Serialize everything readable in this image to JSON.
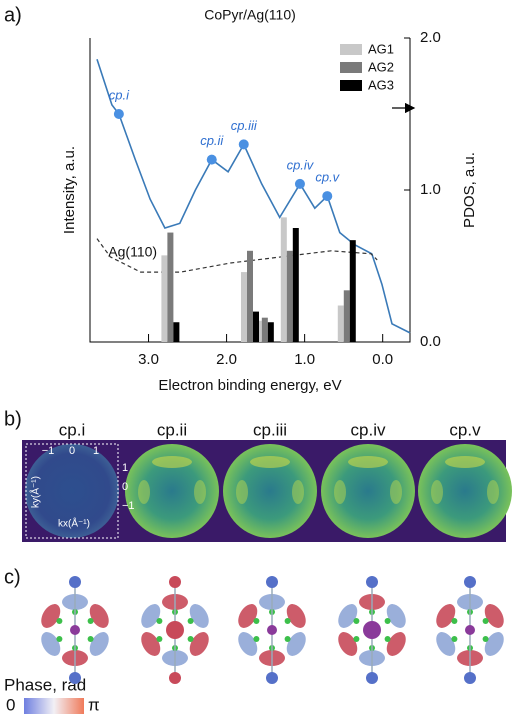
{
  "panels": {
    "a": "a)",
    "b": "b)",
    "c": "c)"
  },
  "chart_data": {
    "type": "combo",
    "title": "CoPyr/Ag(110)",
    "x_label": "Electron binding energy, eV",
    "y_label": "Intensity, a.u.",
    "y2_label": "PDOS, a.u.",
    "xlim": [
      3.75,
      -0.35
    ],
    "xticks": [
      {
        "value": 3,
        "label": "3.0"
      },
      {
        "value": 2,
        "label": "2.0"
      },
      {
        "value": 1,
        "label": "1.0"
      },
      {
        "value": 0,
        "label": "0.0"
      }
    ],
    "ylim": [
      0,
      1
    ],
    "y2lim": [
      0,
      2
    ],
    "y2ticks": [
      {
        "value": 0,
        "label": "0.0"
      },
      {
        "value": 1,
        "label": "1.0"
      },
      {
        "value": 2,
        "label": "2.0"
      }
    ],
    "series": [
      {
        "type": "line",
        "color": "#3a7ab8",
        "x": [
          3.66,
          3.47,
          3.38,
          3.17,
          2.98,
          2.79,
          2.6,
          2.4,
          2.19,
          1.98,
          1.78,
          1.55,
          1.32,
          1.06,
          0.87,
          0.71,
          0.55,
          0.36,
          0.14,
          0.01,
          -0.12,
          -0.35
        ],
        "values": [
          0.93,
          0.78,
          0.75,
          0.6,
          0.47,
          0.375,
          0.39,
          0.5,
          0.6,
          0.56,
          0.65,
          0.52,
          0.41,
          0.52,
          0.44,
          0.48,
          0.36,
          0.32,
          0.29,
          0.19,
          0.06,
          0.03
        ]
      },
      {
        "type": "line",
        "name": "Ag(110)",
        "color": "#333333",
        "dashed": true,
        "x": [
          3.66,
          3.49,
          3.1,
          2.59,
          1.95,
          1.3,
          0.66,
          0.15,
          0.07
        ],
        "values": [
          0.34,
          0.28,
          0.23,
          0.23,
          0.26,
          0.28,
          0.3,
          0.29,
          0.27
        ]
      },
      {
        "type": "scatter",
        "color": "#4a90e2",
        "labels": [
          "cp.i",
          "cp.ii",
          "cp.iii",
          "cp.iv",
          "cp.v"
        ],
        "x": [
          3.38,
          2.19,
          1.78,
          1.06,
          0.71
        ],
        "values": [
          0.75,
          0.6,
          0.65,
          0.52,
          0.48
        ]
      },
      {
        "type": "bar",
        "name": "AG1",
        "color": "#c8c8c8",
        "axis": "y2",
        "x": [
          2.72,
          1.7,
          1.51,
          1.19,
          0.46
        ],
        "values": [
          0.57,
          0.46,
          0.14,
          0.82,
          0.24
        ]
      },
      {
        "type": "bar",
        "name": "AG2",
        "color": "#7a7a7a",
        "axis": "y2",
        "x": [
          2.72,
          1.7,
          1.51,
          1.19,
          0.46
        ],
        "values": [
          0.72,
          0.6,
          0.16,
          0.6,
          0.34
        ]
      },
      {
        "type": "bar",
        "name": "AG3",
        "color": "#000000",
        "axis": "y2",
        "x": [
          2.72,
          1.7,
          1.51,
          1.19,
          0.46
        ],
        "values": [
          0.13,
          0.2,
          0.13,
          0.75,
          0.67
        ]
      }
    ],
    "legend": "upper right"
  },
  "momentum_maps": {
    "titles": [
      "cp.i",
      "cp.ii",
      "cp.iii",
      "cp.iv",
      "cp.v"
    ],
    "kx_ticks": [
      "−1",
      "0",
      "1"
    ],
    "ky_ticks": [
      "1",
      "0",
      "−1"
    ],
    "ky_label": "ky(Å⁻¹)",
    "kx_label": "kx(Å⁻¹)"
  },
  "orbitals": {
    "colorbar_label": "Phase, rad",
    "colorbar_min": "0",
    "colorbar_max": "π"
  }
}
